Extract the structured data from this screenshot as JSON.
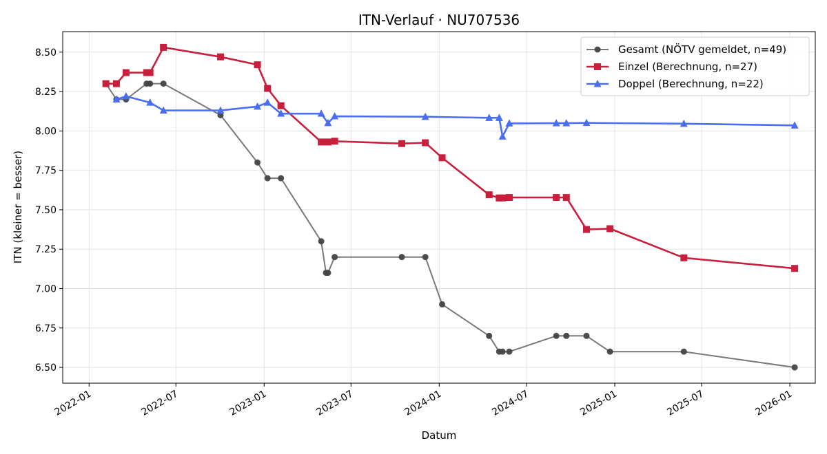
{
  "chart_data": {
    "type": "line",
    "title": "ITN-Verlauf · NU707536",
    "xlabel": "Datum",
    "ylabel": "ITN  (kleiner = besser)",
    "xlim": [
      "2021-11-07",
      "2026-02-23"
    ],
    "ylim": [
      6.4,
      8.63
    ],
    "grid": true,
    "legend_position": "top-right",
    "x_ticks": [
      "2022-01",
      "2022-07",
      "2023-01",
      "2023-07",
      "2024-01",
      "2024-07",
      "2025-01",
      "2025-07",
      "2026-01"
    ],
    "y_ticks": [
      "6.50",
      "6.75",
      "7.00",
      "7.25",
      "7.50",
      "7.75",
      "8.00",
      "8.25",
      "8.50"
    ],
    "series": [
      {
        "name": "Gesamt (NÖTV gemeldet, n=49)",
        "color": "#444444",
        "marker": "circle",
        "points": [
          [
            "2022-02-05",
            8.3
          ],
          [
            "2022-02-27",
            8.2
          ],
          [
            "2022-03-19",
            8.2
          ],
          [
            "2022-05-01",
            8.3
          ],
          [
            "2022-05-08",
            8.3
          ],
          [
            "2022-06-05",
            8.3
          ],
          [
            "2022-10-02",
            8.1
          ],
          [
            "2022-12-18",
            7.8
          ],
          [
            "2023-01-08",
            7.7
          ],
          [
            "2023-02-05",
            7.7
          ],
          [
            "2023-04-30",
            7.3
          ],
          [
            "2023-05-10",
            7.1
          ],
          [
            "2023-05-14",
            7.1
          ],
          [
            "2023-05-28",
            7.2
          ],
          [
            "2023-10-15",
            7.2
          ],
          [
            "2023-12-03",
            7.2
          ],
          [
            "2024-01-07",
            6.9
          ],
          [
            "2024-04-14",
            6.7
          ],
          [
            "2024-05-05",
            6.6
          ],
          [
            "2024-05-12",
            6.6
          ],
          [
            "2024-05-26",
            6.6
          ],
          [
            "2024-09-01",
            6.7
          ],
          [
            "2024-09-22",
            6.7
          ],
          [
            "2024-11-03",
            6.7
          ],
          [
            "2024-12-22",
            6.6
          ],
          [
            "2025-05-25",
            6.6
          ],
          [
            "2026-01-11",
            6.5
          ]
        ]
      },
      {
        "name": "Einzel (Berechnung, n=27)",
        "color": "#c8203c",
        "marker": "square",
        "points": [
          [
            "2022-02-05",
            8.3
          ],
          [
            "2022-02-27",
            8.3
          ],
          [
            "2022-03-19",
            8.37
          ],
          [
            "2022-05-01",
            8.37
          ],
          [
            "2022-05-08",
            8.37
          ],
          [
            "2022-06-05",
            8.53
          ],
          [
            "2022-10-02",
            8.47
          ],
          [
            "2022-12-18",
            8.42
          ],
          [
            "2023-01-08",
            8.27
          ],
          [
            "2023-02-05",
            8.16
          ],
          [
            "2023-04-30",
            7.93
          ],
          [
            "2023-05-14",
            7.93
          ],
          [
            "2023-05-28",
            7.935
          ],
          [
            "2023-10-15",
            7.92
          ],
          [
            "2023-12-03",
            7.925
          ],
          [
            "2024-01-07",
            7.83
          ],
          [
            "2024-04-14",
            7.595
          ],
          [
            "2024-05-05",
            7.575
          ],
          [
            "2024-05-12",
            7.575
          ],
          [
            "2024-05-26",
            7.578
          ],
          [
            "2024-09-01",
            7.578
          ],
          [
            "2024-09-22",
            7.578
          ],
          [
            "2024-11-03",
            7.375
          ],
          [
            "2024-12-22",
            7.38
          ],
          [
            "2025-05-25",
            7.195
          ],
          [
            "2026-01-11",
            7.128
          ]
        ]
      },
      {
        "name": "Doppel (Berechnung, n=22)",
        "color": "#4a6ef0",
        "marker": "triangle",
        "points": [
          [
            "2022-02-27",
            8.2
          ],
          [
            "2022-03-19",
            8.22
          ],
          [
            "2022-05-08",
            8.18
          ],
          [
            "2022-06-05",
            8.13
          ],
          [
            "2022-10-02",
            8.13
          ],
          [
            "2022-12-18",
            8.155
          ],
          [
            "2023-01-08",
            8.18
          ],
          [
            "2023-02-05",
            8.11
          ],
          [
            "2023-04-30",
            8.11
          ],
          [
            "2023-05-14",
            8.05
          ],
          [
            "2023-05-28",
            8.093
          ],
          [
            "2023-12-03",
            8.09
          ],
          [
            "2024-04-14",
            8.083
          ],
          [
            "2024-05-05",
            8.083
          ],
          [
            "2024-05-12",
            7.965
          ],
          [
            "2024-05-26",
            8.048
          ],
          [
            "2024-09-01",
            8.049
          ],
          [
            "2024-09-22",
            8.049
          ],
          [
            "2024-11-03",
            8.051
          ],
          [
            "2025-05-25",
            8.046
          ],
          [
            "2026-01-11",
            8.035
          ]
        ]
      }
    ]
  }
}
